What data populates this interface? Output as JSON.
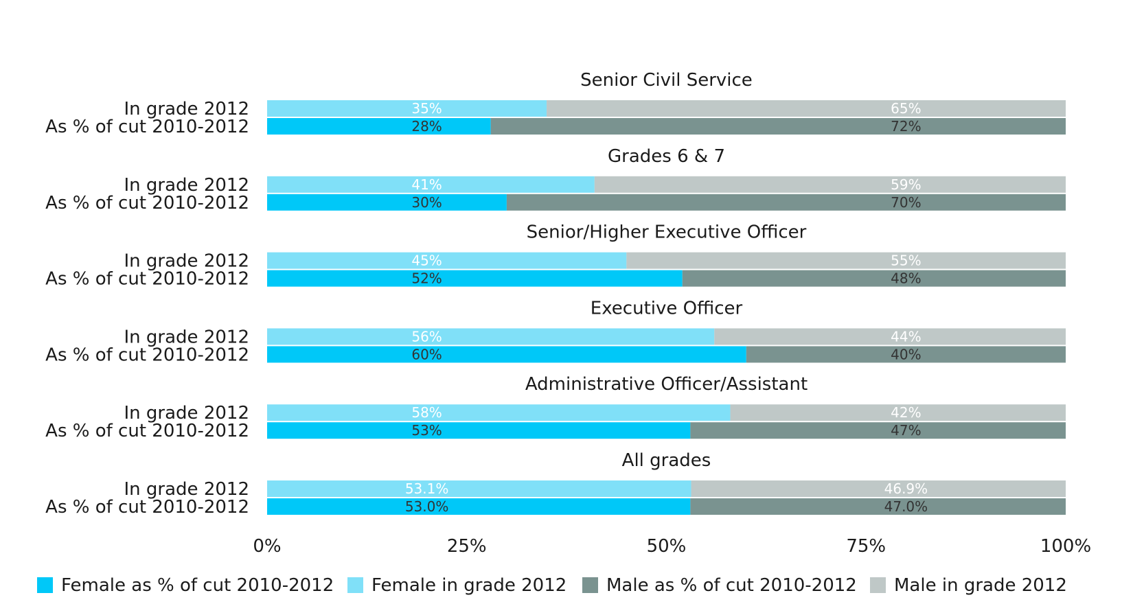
{
  "chart_data": {
    "type": "bar",
    "orientation": "horizontal",
    "stacked": "100%",
    "row_labels": [
      "In grade 2012",
      "As % of cut 2010-2012"
    ],
    "groups": [
      {
        "title": "Senior Civil Service",
        "rows": [
          {
            "label": "In grade 2012",
            "female": 35,
            "male": 65,
            "female_text": "35%",
            "male_text": "65%"
          },
          {
            "label": "As % of cut 2010-2012",
            "female": 28,
            "male": 72,
            "female_text": "28%",
            "male_text": "72%"
          }
        ]
      },
      {
        "title": "Grades 6 & 7",
        "rows": [
          {
            "label": "In grade 2012",
            "female": 41,
            "male": 59,
            "female_text": "41%",
            "male_text": "59%"
          },
          {
            "label": "As % of cut 2010-2012",
            "female": 30,
            "male": 70,
            "female_text": "30%",
            "male_text": "70%"
          }
        ]
      },
      {
        "title": "Senior/Higher Executive Officer",
        "rows": [
          {
            "label": "In grade 2012",
            "female": 45,
            "male": 55,
            "female_text": "45%",
            "male_text": "55%"
          },
          {
            "label": "As % of cut 2010-2012",
            "female": 52,
            "male": 48,
            "female_text": "52%",
            "male_text": "48%"
          }
        ]
      },
      {
        "title": "Executive Officer",
        "rows": [
          {
            "label": "In grade 2012",
            "female": 56,
            "male": 44,
            "female_text": "56%",
            "male_text": "44%"
          },
          {
            "label": "As % of cut 2010-2012",
            "female": 60,
            "male": 40,
            "female_text": "60%",
            "male_text": "40%"
          }
        ]
      },
      {
        "title": "Administrative Officer/Assistant",
        "rows": [
          {
            "label": "In grade 2012",
            "female": 58,
            "male": 42,
            "female_text": "58%",
            "male_text": "42%"
          },
          {
            "label": "As % of cut 2010-2012",
            "female": 53,
            "male": 47,
            "female_text": "53%",
            "male_text": "47%"
          }
        ]
      },
      {
        "title": "All grades",
        "rows": [
          {
            "label": "In grade 2012",
            "female": 53.1,
            "male": 46.9,
            "female_text": "53.1%",
            "male_text": "46.9%"
          },
          {
            "label": "As % of cut 2010-2012",
            "female": 53.0,
            "male": 47.0,
            "female_text": "53.0%",
            "male_text": "47.0%"
          }
        ]
      }
    ],
    "x_ticks": [
      "0%",
      "25%",
      "50%",
      "75%",
      "100%"
    ],
    "xlim": [
      0,
      100
    ],
    "grid": false,
    "legend_position": "bottom",
    "legend": [
      {
        "key": "female_cut",
        "label": "Female as % of cut 2010-2012",
        "color": "#00C8F8"
      },
      {
        "key": "female_grade",
        "label": "Female in grade 2012",
        "color": "#80E0F8"
      },
      {
        "key": "male_cut",
        "label": "Male as % of cut 2010-2012",
        "color": "#7A9390"
      },
      {
        "key": "male_grade",
        "label": "Male in grade 2012",
        "color": "#BFC8C7"
      }
    ],
    "colors": {
      "female_grade": "#80E0F8",
      "female_cut": "#00C8F8",
      "male_grade": "#BFC8C7",
      "male_cut": "#7A9390",
      "value_text_light": "#ffffff",
      "value_text_dark": "#333333"
    }
  }
}
